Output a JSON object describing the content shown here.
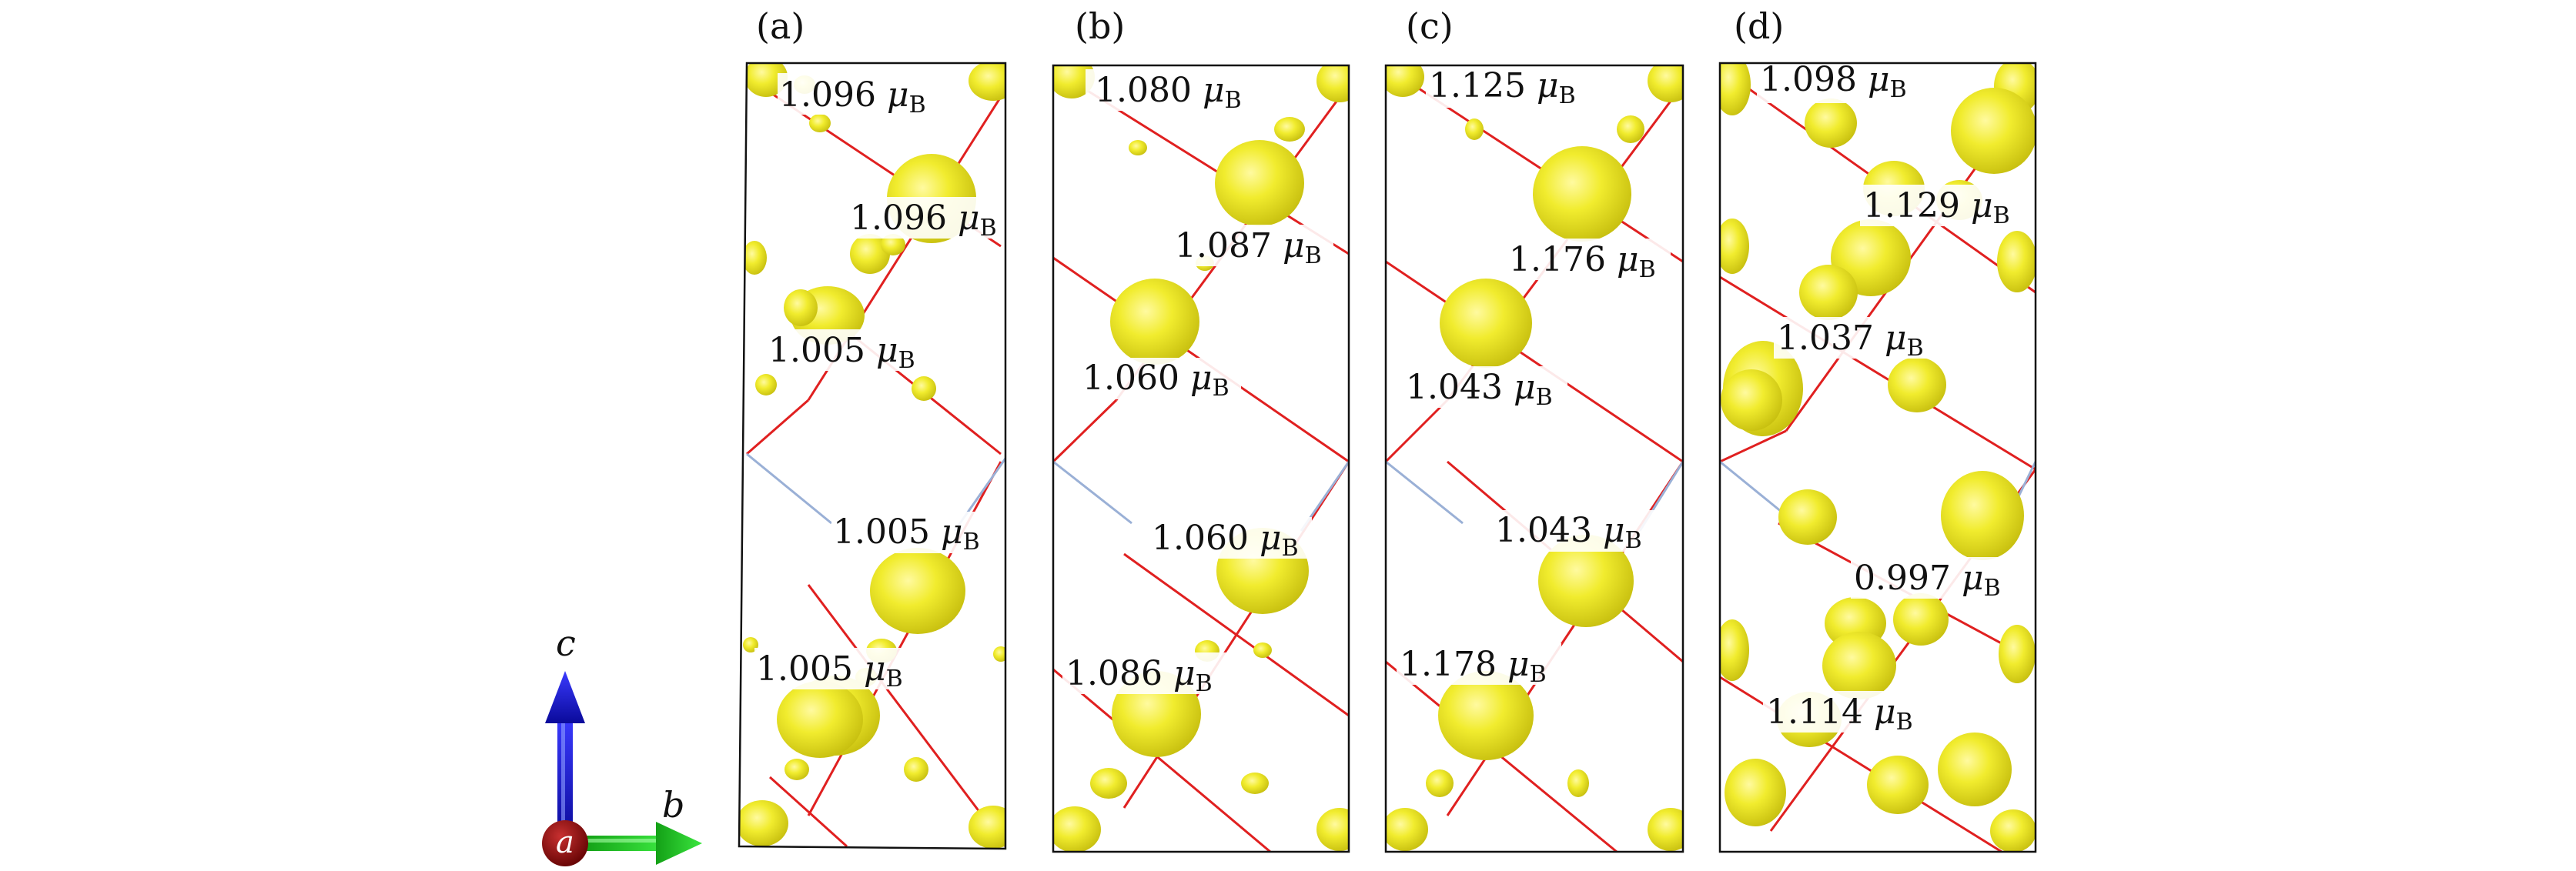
{
  "panels": [
    {
      "label": "(a)",
      "moments": [
        {
          "value": "1.096",
          "unit_symbol": "μ",
          "unit_sub": "B"
        },
        {
          "value": "1.096",
          "unit_symbol": "μ",
          "unit_sub": "B"
        },
        {
          "value": "1.005",
          "unit_symbol": "μ",
          "unit_sub": "B"
        },
        {
          "value": "1.005",
          "unit_symbol": "μ",
          "unit_sub": "B"
        },
        {
          "value": "1.005",
          "unit_symbol": "μ",
          "unit_sub": "B"
        }
      ]
    },
    {
      "label": "(b)",
      "moments": [
        {
          "value": "1.080",
          "unit_symbol": "μ",
          "unit_sub": "B"
        },
        {
          "value": "1.087",
          "unit_symbol": "μ",
          "unit_sub": "B"
        },
        {
          "value": "1.060",
          "unit_symbol": "μ",
          "unit_sub": "B"
        },
        {
          "value": "1.060",
          "unit_symbol": "μ",
          "unit_sub": "B"
        },
        {
          "value": "1.086",
          "unit_symbol": "μ",
          "unit_sub": "B"
        }
      ]
    },
    {
      "label": "(c)",
      "moments": [
        {
          "value": "1.125",
          "unit_symbol": "μ",
          "unit_sub": "B"
        },
        {
          "value": "1.176",
          "unit_symbol": "μ",
          "unit_sub": "B"
        },
        {
          "value": "1.043",
          "unit_symbol": "μ",
          "unit_sub": "B"
        },
        {
          "value": "1.043",
          "unit_symbol": "μ",
          "unit_sub": "B"
        },
        {
          "value": "1.178",
          "unit_symbol": "μ",
          "unit_sub": "B"
        }
      ]
    },
    {
      "label": "(d)",
      "moments": [
        {
          "value": "1.098",
          "unit_symbol": "μ",
          "unit_sub": "B"
        },
        {
          "value": "1.129",
          "unit_symbol": "μ",
          "unit_sub": "B"
        },
        {
          "value": "1.037",
          "unit_symbol": "μ",
          "unit_sub": "B"
        },
        {
          "value": "0.997",
          "unit_symbol": "μ",
          "unit_sub": "B"
        },
        {
          "value": "1.114",
          "unit_symbol": "μ",
          "unit_sub": "B"
        }
      ]
    }
  ],
  "axes": {
    "c_label": "c",
    "b_label": "b",
    "a_label": "a",
    "c_color": "#1a1ad9",
    "b_color": "#19c21d",
    "a_color": "#8b1010"
  },
  "colors": {
    "isosurface": "#f3ef2a",
    "isosurface_shade": "#d9d214",
    "bond": "#e02020",
    "cell_edge": "#9ab0d6"
  }
}
